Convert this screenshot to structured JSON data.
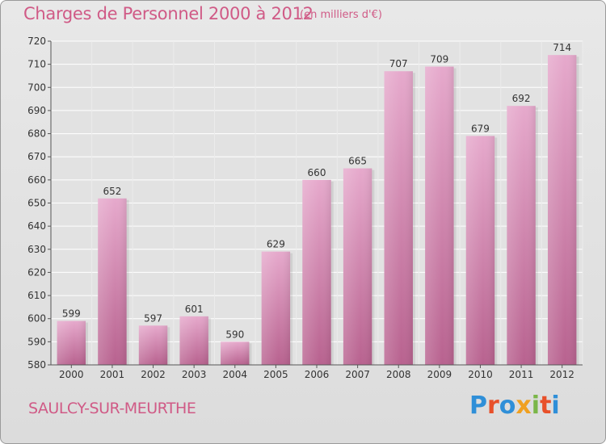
{
  "header": {
    "title": "Charges de Personnel 2000 à 2012",
    "unit_note": "(en milliers d'€)"
  },
  "footer": {
    "commune": "SAULCY-SUR-MEURTHE",
    "logo_letters": [
      "P",
      "r",
      "o",
      "x",
      "i",
      "t",
      "i"
    ],
    "logo_colors": [
      "#2f8fd8",
      "#e8502a",
      "#2f8fd8",
      "#f0a020",
      "#7ab648",
      "#e8502a",
      "#2f8fd8"
    ]
  },
  "colors": {
    "bar_light": "#e6a9cc",
    "bar_dark": "#b8628f",
    "accent": "#d05a86",
    "grid": "#ffffff"
  },
  "chart_data": {
    "type": "bar",
    "title": "Charges de Personnel 2000 à 2012",
    "subtitle": "(en milliers d'€)",
    "xlabel": "",
    "ylabel": "",
    "categories": [
      "2000",
      "2001",
      "2002",
      "2003",
      "2004",
      "2005",
      "2006",
      "2007",
      "2008",
      "2009",
      "2010",
      "2011",
      "2012"
    ],
    "values": [
      599,
      652,
      597,
      601,
      590,
      629,
      660,
      665,
      707,
      709,
      679,
      692,
      714
    ],
    "ylim": [
      580,
      720
    ],
    "yticks": [
      580,
      590,
      600,
      610,
      620,
      630,
      640,
      650,
      660,
      670,
      680,
      690,
      700,
      710,
      720
    ],
    "grid": true,
    "legend": "none"
  }
}
